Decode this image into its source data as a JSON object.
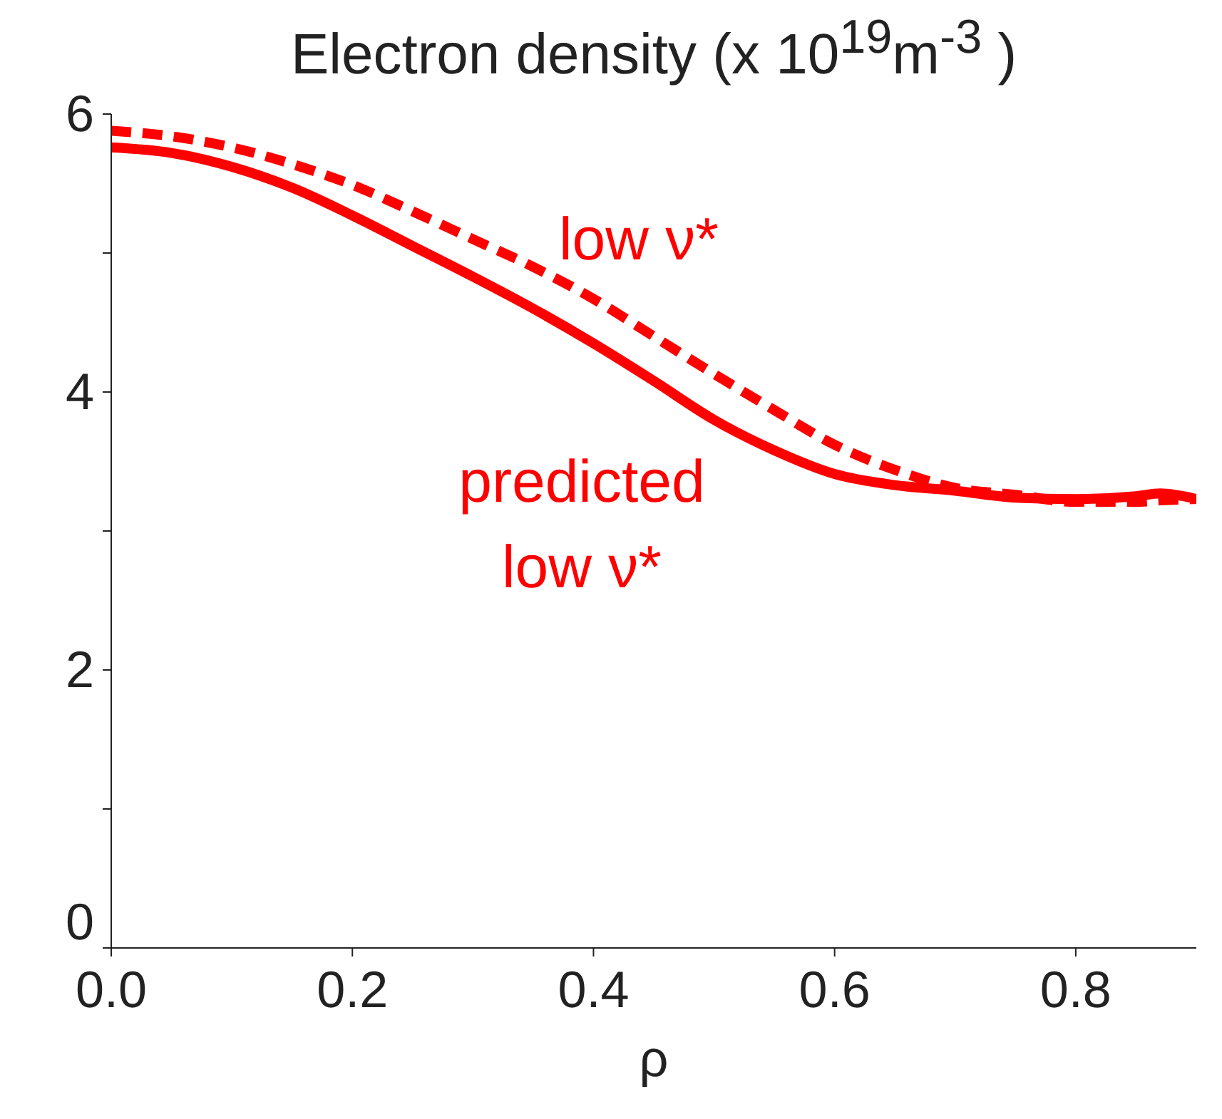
{
  "chart_data": {
    "type": "line",
    "title": "Electron density (x 10$^{19}$m$^{-3}$ )",
    "xlabel": "ρ",
    "x": [
      0,
      0.05,
      0.1,
      0.15,
      0.2,
      0.25,
      0.3,
      0.35,
      0.4,
      0.45,
      0.5,
      0.55,
      0.6,
      0.65,
      0.7,
      0.75,
      0.8,
      0.85,
      0.87,
      0.9
    ],
    "series": [
      {
        "color": "#ff0000",
        "line_style": "solid",
        "values": [
          5.76,
          5.72,
          5.62,
          5.47,
          5.27,
          5.05,
          4.83,
          4.6,
          4.35,
          4.08,
          3.8,
          3.58,
          3.41,
          3.33,
          3.29,
          3.24,
          3.23,
          3.25,
          3.27,
          3.23
        ]
      },
      {
        "color": "#ff0000",
        "line_style": "dashed",
        "values": [
          5.88,
          5.84,
          5.76,
          5.64,
          5.49,
          5.3,
          5.1,
          4.9,
          4.67,
          4.4,
          4.13,
          3.87,
          3.62,
          3.44,
          3.31,
          3.26,
          3.21,
          3.21,
          3.22,
          3.23
        ]
      }
    ],
    "annotations": [
      "low ν*",
      "predicted low ν*"
    ],
    "xlim": [
      0,
      0.9
    ],
    "xticks": [
      {
        "value": 0,
        "label": "0.0"
      },
      {
        "value": 0.2,
        "label": "0.2"
      },
      {
        "value": 0.4,
        "label": "0.4"
      },
      {
        "value": 0.6,
        "label": "0.6"
      },
      {
        "value": 0.8,
        "label": "0.8"
      }
    ],
    "ylim": [
      0,
      6
    ],
    "yticks": [
      0,
      {
        "value": 1,
        "label": null
      },
      2,
      {
        "value": 3,
        "label": null
      },
      4,
      {
        "value": 5,
        "label": null
      },
      6
    ],
    "grid": false,
    "legend": false,
    "marker": "none"
  }
}
